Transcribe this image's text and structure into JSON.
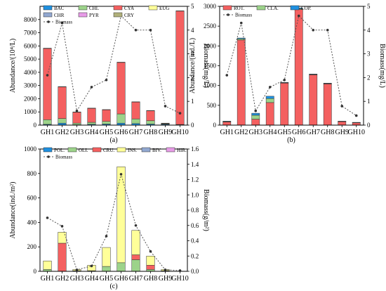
{
  "chart_data": [
    {
      "type": "bar",
      "stacked": true,
      "caption": "(a)",
      "ylabel": "Abundance/(10⁴/L)",
      "y2label": "Biomass(mg/L)",
      "ylim": [
        0,
        9000
      ],
      "y2lim": [
        0,
        5
      ],
      "yticks": [
        0,
        1000,
        2000,
        3000,
        4000,
        5000,
        6000,
        7000,
        8000
      ],
      "y2ticks": [
        0,
        1,
        2,
        3,
        4,
        5
      ],
      "categories": [
        "GH1",
        "GH2",
        "GH3",
        "GH4",
        "GH5",
        "GH6",
        "GH7",
        "GH8",
        "GH9",
        "GH10"
      ],
      "series": [
        {
          "name": "BAC",
          "color": "#1e90e0",
          "values": [
            60,
            150,
            30,
            60,
            80,
            150,
            120,
            80,
            60,
            20
          ]
        },
        {
          "name": "CHL",
          "color": "#9cd38a",
          "values": [
            350,
            350,
            120,
            150,
            200,
            700,
            350,
            250,
            40,
            30
          ]
        },
        {
          "name": "CYA",
          "color": "#f46060",
          "values": [
            5400,
            2400,
            830,
            1060,
            880,
            3900,
            1280,
            760,
            40,
            8600
          ]
        },
        {
          "name": "EUG",
          "color": "#ffff99",
          "values": [
            20,
            20,
            20,
            20,
            20,
            20,
            20,
            20,
            10,
            10
          ]
        },
        {
          "name": "CHR",
          "color": "#92a8d0",
          "values": [
            0,
            0,
            0,
            0,
            0,
            0,
            0,
            0,
            0,
            0
          ]
        },
        {
          "name": "PYR",
          "color": "#e79be7",
          "values": [
            0,
            0,
            0,
            0,
            0,
            0,
            0,
            0,
            0,
            0
          ]
        },
        {
          "name": "CRY",
          "color": "#b0b07a",
          "values": [
            0,
            0,
            0,
            0,
            0,
            0,
            0,
            0,
            0,
            0
          ]
        }
      ],
      "line": {
        "name": "Biomass",
        "color": "#555555",
        "values": [
          2.1,
          4.3,
          0.6,
          1.6,
          1.9,
          4.6,
          4.0,
          4.0,
          0.8,
          0.5
        ]
      }
    },
    {
      "type": "bar",
      "stacked": true,
      "caption": "(b)",
      "ylabel": "Abundance/(ind./L)",
      "y2label": "Biomass(mg/L)",
      "ylim": [
        0,
        3000
      ],
      "y2lim": [
        0,
        5
      ],
      "yticks": [
        0,
        500,
        1000,
        1500,
        2000,
        2500,
        3000
      ],
      "y2ticks": [
        0,
        1,
        2,
        3,
        4,
        5
      ],
      "categories": [
        "GH1",
        "GH2",
        "GH3",
        "GH4",
        "GH5",
        "GH6",
        "GH7",
        "GH8",
        "GH9",
        "GH10"
      ],
      "series": [
        {
          "name": "ROT.",
          "color": "#f46060",
          "values": [
            80,
            2150,
            150,
            570,
            1060,
            2920,
            1270,
            1040,
            90,
            60
          ]
        },
        {
          "name": "CLA.",
          "color": "#9cd38a",
          "values": [
            10,
            30,
            100,
            100,
            10,
            20,
            10,
            10,
            5,
            5
          ]
        },
        {
          "name": "COP.",
          "color": "#1e90e0",
          "values": [
            10,
            20,
            50,
            60,
            10,
            20,
            10,
            10,
            5,
            5
          ]
        }
      ],
      "line": {
        "name": "Biomass",
        "color": "#555555",
        "values": [
          2.1,
          4.3,
          0.6,
          1.6,
          1.9,
          4.6,
          4.0,
          4.0,
          0.8,
          0.4
        ]
      }
    },
    {
      "type": "bar",
      "stacked": true,
      "caption": "(c)",
      "ylabel": "Abundance(ind./m²)",
      "y2label": "Biomass(g/m²)",
      "ylim": [
        0,
        1000
      ],
      "y2lim": [
        0,
        1.6
      ],
      "yticks": [
        0,
        200,
        400,
        600,
        800,
        1000
      ],
      "y2ticks": [
        0.0,
        0.2,
        0.4,
        0.6,
        0.8,
        1.0,
        1.2,
        1.4,
        1.6
      ],
      "categories": [
        "GH1",
        "GH2",
        "GH3",
        "GH4",
        "GH5",
        "GH6",
        "GH7",
        "GH8",
        "GH9",
        "GH10"
      ],
      "series": [
        {
          "name": "POL.",
          "color": "#1e90e0",
          "values": [
            0,
            0,
            0,
            0,
            0,
            0,
            0,
            0,
            0,
            0
          ]
        },
        {
          "name": "OLI.",
          "color": "#9cd38a",
          "values": [
            15,
            0,
            5,
            5,
            40,
            70,
            95,
            15,
            5,
            0
          ]
        },
        {
          "name": "CRU.",
          "color": "#f46060",
          "values": [
            0,
            230,
            0,
            0,
            0,
            0,
            40,
            35,
            0,
            0
          ]
        },
        {
          "name": "INS.",
          "color": "#ffff99",
          "values": [
            70,
            90,
            10,
            45,
            155,
            785,
            200,
            75,
            10,
            0
          ]
        },
        {
          "name": "BIV.",
          "color": "#92a8d0",
          "values": [
            0,
            0,
            0,
            0,
            0,
            0,
            0,
            0,
            0,
            0
          ]
        },
        {
          "name": "HIR.",
          "color": "#e79be7",
          "values": [
            0,
            0,
            0,
            0,
            0,
            0,
            0,
            0,
            0,
            0
          ]
        }
      ],
      "line": {
        "name": "Biomass",
        "color": "#555555",
        "values": [
          0.7,
          0.59,
          0.02,
          0.07,
          0.46,
          1.27,
          0.6,
          0.26,
          0.02,
          0.01
        ]
      }
    }
  ]
}
